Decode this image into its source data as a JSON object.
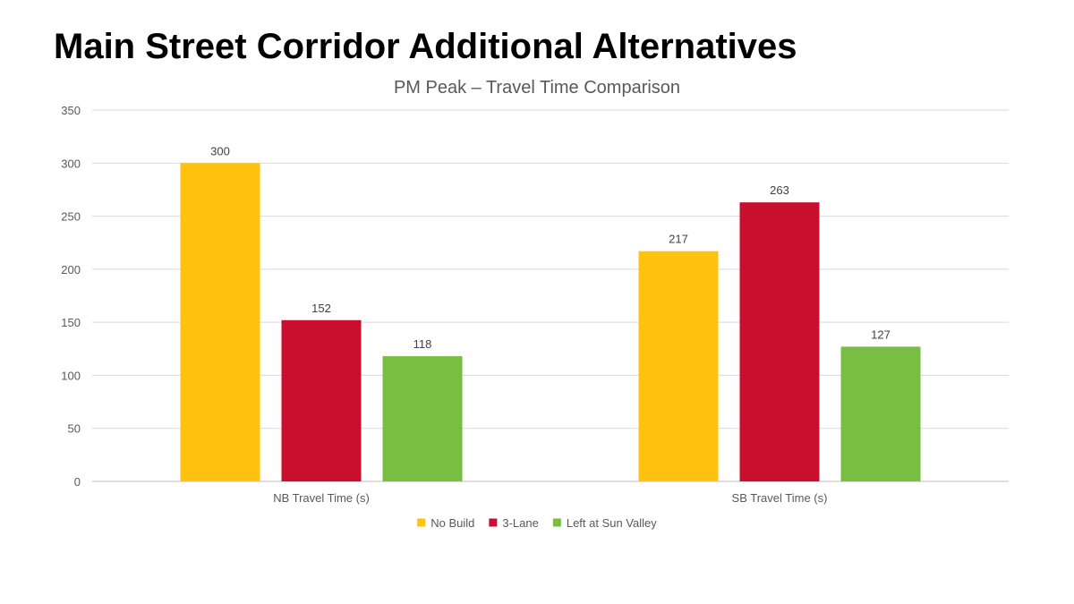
{
  "slide": {
    "title": "Main Street Corridor Additional Alternatives"
  },
  "chart_data": {
    "type": "bar",
    "title": "PM Peak – Travel Time Comparison",
    "categories": [
      "NB Travel Time (s)",
      "SB Travel Time (s)"
    ],
    "series": [
      {
        "name": "No Build",
        "color": "#FFC20E",
        "values": [
          300,
          217
        ]
      },
      {
        "name": "3-Lane",
        "color": "#C8102E",
        "values": [
          152,
          263
        ]
      },
      {
        "name": "Left at Sun Valley",
        "color": "#77BE43",
        "values": [
          118,
          127
        ]
      }
    ],
    "ylim": [
      0,
      350
    ],
    "yticks": [
      0,
      50,
      100,
      150,
      200,
      250,
      300,
      350
    ],
    "grid": true,
    "legend": "bottom",
    "data_labels": true
  }
}
